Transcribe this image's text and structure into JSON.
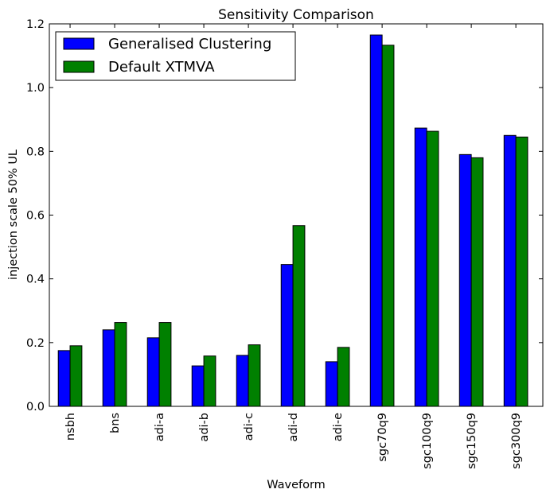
{
  "chart_data": {
    "type": "bar",
    "title": "Sensitivity Comparison",
    "xlabel": "Waveform",
    "ylabel": "injection scale 50% UL",
    "ylim": [
      0,
      1.2
    ],
    "yticks": [
      "0.0",
      "0.2",
      "0.4",
      "0.6",
      "0.8",
      "1.0",
      "1.2"
    ],
    "categories": [
      "nsbh",
      "bns",
      "adi-a",
      "adi-b",
      "adi-c",
      "adi-d",
      "adi-e",
      "sgc70q9",
      "sgc100q9",
      "sgc150q9",
      "sgc300q9"
    ],
    "series": [
      {
        "name": "Generalised Clustering",
        "color": "#0000ff",
        "values": [
          0.175,
          0.24,
          0.215,
          0.127,
          0.16,
          0.445,
          0.14,
          1.165,
          0.873,
          0.79,
          0.85
        ]
      },
      {
        "name": "Default XTMVA",
        "color": "#008000",
        "values": [
          0.19,
          0.263,
          0.263,
          0.158,
          0.193,
          0.567,
          0.185,
          1.133,
          0.863,
          0.78,
          0.845
        ]
      }
    ],
    "legend_position": "top-left",
    "grid": false
  }
}
